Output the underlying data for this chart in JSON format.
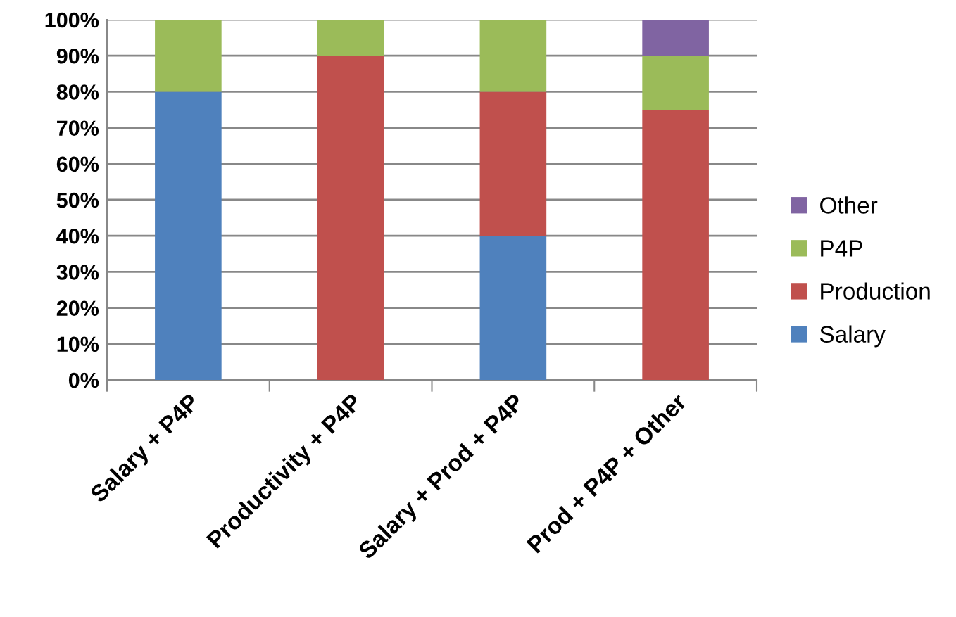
{
  "chart_data": {
    "type": "bar",
    "stacked": true,
    "categories": [
      "Salary + P4P",
      "Productivity + P4P",
      "Salary + Prod + P4P",
      "Prod + P4P + Other"
    ],
    "series": [
      {
        "name": "Salary",
        "color": "#4f81bd",
        "values": [
          80,
          null,
          40,
          null
        ]
      },
      {
        "name": "Production",
        "color": "#c0504d",
        "values": [
          null,
          90,
          40,
          75
        ]
      },
      {
        "name": "P4P",
        "color": "#9bbb59",
        "values": [
          20,
          10,
          20,
          15
        ]
      },
      {
        "name": "Other",
        "color": "#8064a2",
        "values": [
          null,
          null,
          null,
          10
        ]
      }
    ],
    "ylim": [
      0,
      100
    ],
    "yticks": [
      {
        "value": 0,
        "label": "0%"
      },
      {
        "value": 10,
        "label": "10%"
      },
      {
        "value": 20,
        "label": "20%"
      },
      {
        "value": 30,
        "label": "30%"
      },
      {
        "value": 40,
        "label": "40%"
      },
      {
        "value": 50,
        "label": "50%"
      },
      {
        "value": 60,
        "label": "60%"
      },
      {
        "value": 70,
        "label": "70%"
      },
      {
        "value": 80,
        "label": "80%"
      },
      {
        "value": 90,
        "label": "90%"
      },
      {
        "value": 100,
        "label": "100%"
      }
    ],
    "grid": "y",
    "legend": "right"
  }
}
